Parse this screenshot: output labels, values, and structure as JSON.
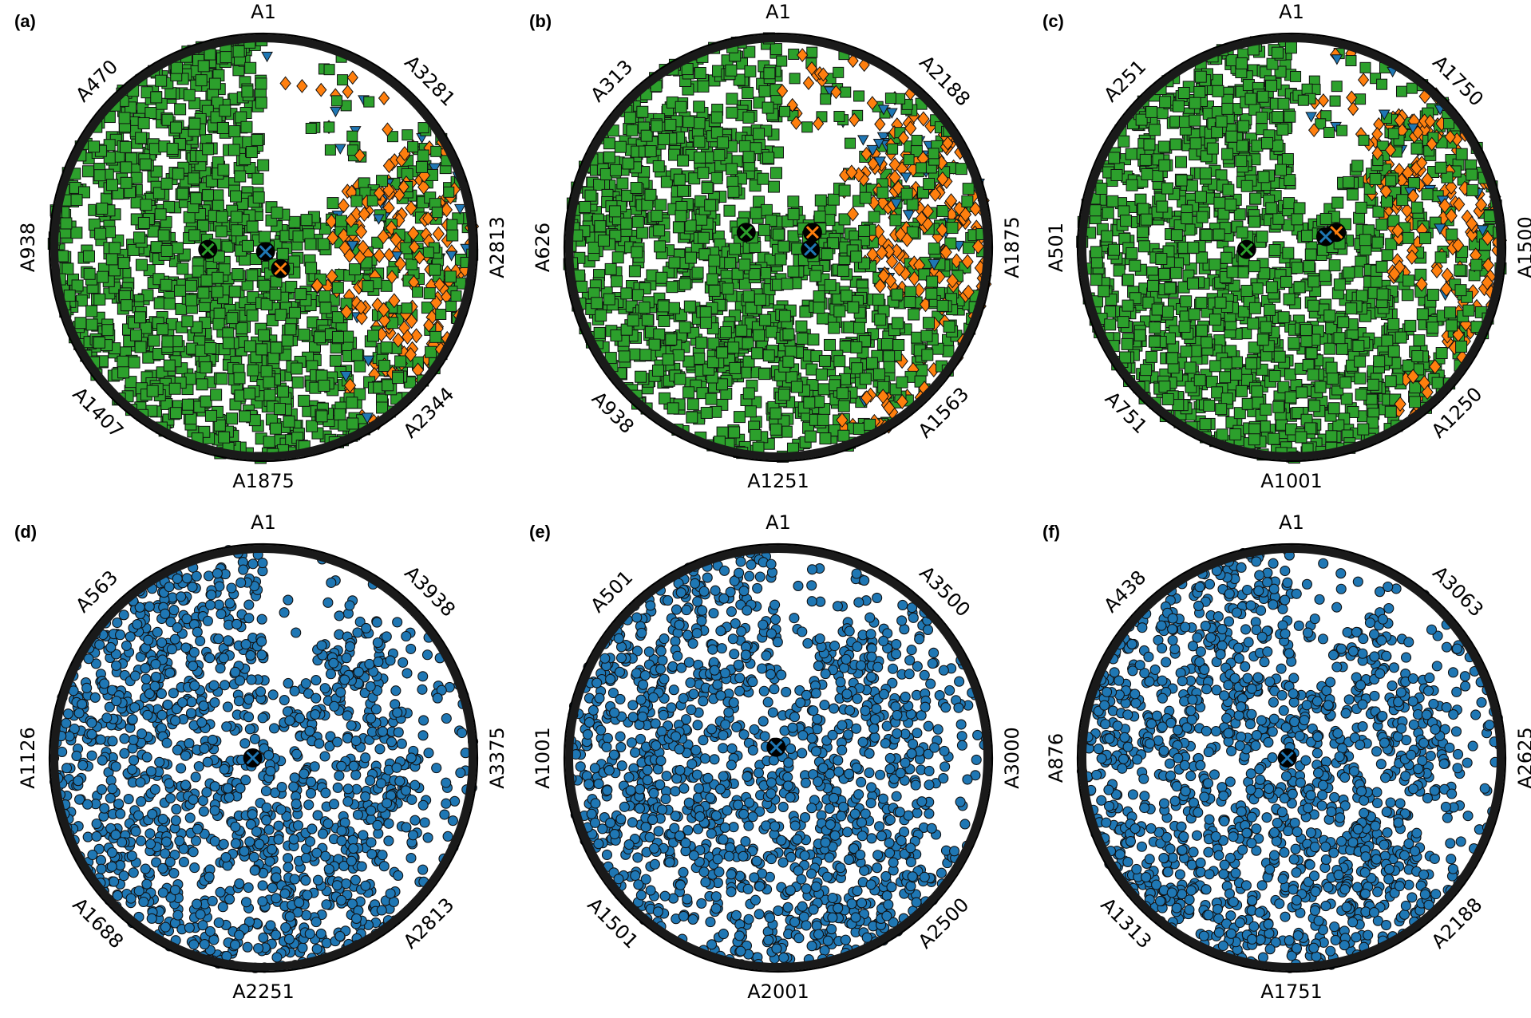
{
  "figure": {
    "panels": [
      {
        "tag": "(a)",
        "anchors": [
          "A1",
          "A470",
          "A938",
          "A1407",
          "A1875",
          "A2344",
          "A2813",
          "A3281"
        ]
      },
      {
        "tag": "(b)",
        "anchors": [
          "A1",
          "A313",
          "A626",
          "A938",
          "A1251",
          "A1563",
          "A1875",
          "A2188"
        ]
      },
      {
        "tag": "(c)",
        "anchors": [
          "A1",
          "A251",
          "A501",
          "A751",
          "A1001",
          "A1250",
          "A1500",
          "A1750"
        ]
      },
      {
        "tag": "(d)",
        "anchors": [
          "A1",
          "A563",
          "A1126",
          "A1688",
          "A2251",
          "A2813",
          "A3375",
          "A3938"
        ]
      },
      {
        "tag": "(e)",
        "anchors": [
          "A1",
          "A501",
          "A1001",
          "A1501",
          "A2001",
          "A2500",
          "A3000",
          "A3500"
        ]
      },
      {
        "tag": "(f)",
        "anchors": [
          "A1",
          "A438",
          "A876",
          "A1313",
          "A1751",
          "A2188",
          "A2625",
          "A3063"
        ]
      }
    ]
  },
  "colors": {
    "green": "#2ca02c",
    "orange": "#ff7f0e",
    "blue": "#1f77b4",
    "edge": "#111111"
  },
  "chart_data": [
    {
      "type": "scatter",
      "subtype": "radviz",
      "title": "(a)",
      "anchors": [
        "A1",
        "A470",
        "A938",
        "A1407",
        "A1875",
        "A2344",
        "A2813",
        "A3281"
      ],
      "series": [
        {
          "marker": "square",
          "color": "#2ca02c",
          "centroid": [
            -0.26,
            -0.01
          ]
        },
        {
          "marker": "diamond",
          "color": "#ff7f0e",
          "centroid": [
            0.08,
            -0.1
          ]
        },
        {
          "marker": "triangle-down",
          "color": "#1f77b4",
          "centroid": [
            0.01,
            -0.02
          ]
        }
      ],
      "grid": false,
      "legend": "none"
    },
    {
      "type": "scatter",
      "subtype": "radviz",
      "title": "(b)",
      "anchors": [
        "A1",
        "A313",
        "A626",
        "A938",
        "A1251",
        "A1563",
        "A1875",
        "A2188"
      ],
      "series": [
        {
          "marker": "square",
          "color": "#2ca02c",
          "centroid": [
            -0.15,
            0.07
          ]
        },
        {
          "marker": "diamond",
          "color": "#ff7f0e",
          "centroid": [
            0.16,
            0.07
          ]
        },
        {
          "marker": "triangle-down",
          "color": "#1f77b4",
          "centroid": [
            0.15,
            -0.01
          ]
        }
      ],
      "grid": false,
      "legend": "none"
    },
    {
      "type": "scatter",
      "subtype": "radviz",
      "title": "(c)",
      "anchors": [
        "A1",
        "A251",
        "A501",
        "A751",
        "A1001",
        "A1250",
        "A1500",
        "A1750"
      ],
      "series": [
        {
          "marker": "square",
          "color": "#2ca02c",
          "centroid": [
            -0.21,
            -0.01
          ]
        },
        {
          "marker": "diamond",
          "color": "#ff7f0e",
          "centroid": [
            0.21,
            0.07
          ]
        },
        {
          "marker": "triangle-down",
          "color": "#1f77b4",
          "centroid": [
            0.16,
            0.05
          ]
        }
      ],
      "grid": false,
      "legend": "none"
    },
    {
      "type": "scatter",
      "subtype": "radviz",
      "title": "(d)",
      "anchors": [
        "A1",
        "A563",
        "A1126",
        "A1688",
        "A2251",
        "A2813",
        "A3375",
        "A3938"
      ],
      "series": [
        {
          "marker": "circle",
          "color": "#1f77b4",
          "centroid": [
            -0.05,
            0.0
          ]
        }
      ],
      "grid": false,
      "legend": "none"
    },
    {
      "type": "scatter",
      "subtype": "radviz",
      "title": "(e)",
      "anchors": [
        "A1",
        "A501",
        "A1001",
        "A1501",
        "A2001",
        "A2500",
        "A3000",
        "A3500"
      ],
      "series": [
        {
          "marker": "circle",
          "color": "#1f77b4",
          "centroid": [
            -0.01,
            0.05
          ]
        }
      ],
      "grid": false,
      "legend": "none"
    },
    {
      "type": "scatter",
      "subtype": "radviz",
      "title": "(f)",
      "anchors": [
        "A1",
        "A438",
        "A876",
        "A1313",
        "A1751",
        "A2188",
        "A2625",
        "A3063"
      ],
      "series": [
        {
          "marker": "circle",
          "color": "#1f77b4",
          "centroid": [
            -0.02,
            0.0
          ]
        }
      ],
      "grid": false,
      "legend": "none"
    }
  ]
}
